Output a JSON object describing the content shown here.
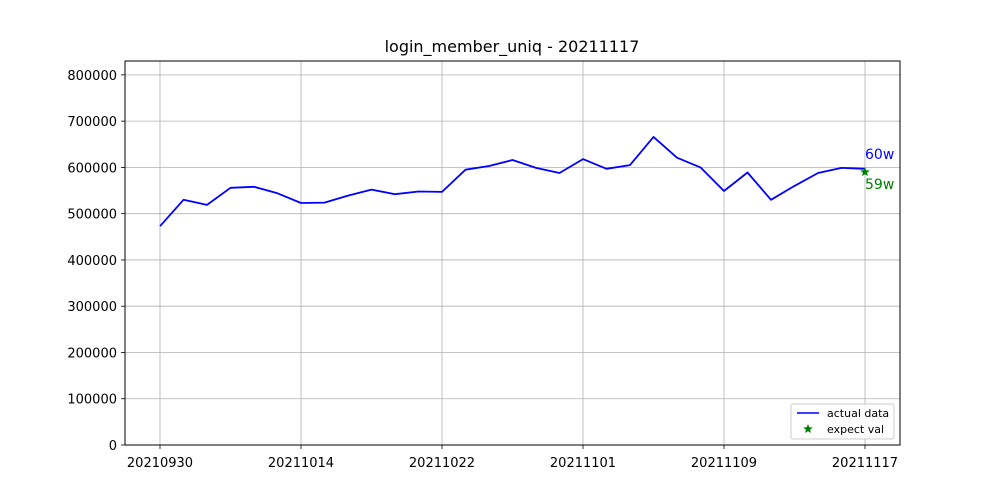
{
  "chart_data": {
    "type": "line",
    "title": "login_member_uniq - 20211117",
    "xlabel": "",
    "ylabel": "",
    "x_ticks": [
      "20210930",
      "20211014",
      "20211022",
      "20211101",
      "20211109",
      "20211117"
    ],
    "y_ticks": [
      "0",
      "100000",
      "200000",
      "300000",
      "400000",
      "500000",
      "600000",
      "700000",
      "800000"
    ],
    "ylim": [
      0,
      830000
    ],
    "grid": true,
    "legend_position": "lower-right",
    "series": [
      {
        "name": "actual data",
        "color": "#0000ff",
        "values": [
          473000,
          530000,
          519000,
          556000,
          558000,
          544000,
          523000,
          524000,
          539000,
          552000,
          542000,
          548000,
          547000,
          595000,
          603000,
          616000,
          599000,
          588000,
          618000,
          597000,
          605000,
          666000,
          621000,
          600000,
          549000,
          589000,
          530000,
          560000,
          588000,
          599000,
          597000
        ]
      },
      {
        "name": "expect val",
        "color": "#008000",
        "marker": "star",
        "points": [
          {
            "index": 30,
            "value": 590000
          }
        ]
      }
    ],
    "annotations": [
      {
        "text": "60w",
        "color": "#0000ff"
      },
      {
        "text": "59w",
        "color": "#008000"
      }
    ]
  }
}
